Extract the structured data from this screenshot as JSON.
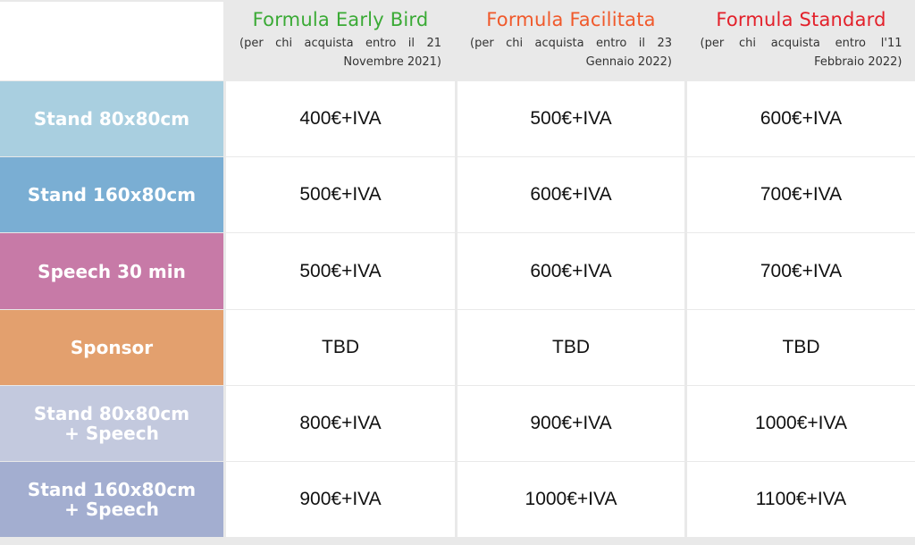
{
  "columns": [
    {
      "title": "Formula Early Bird",
      "subtitle": "(per chi acquista entro il 21 Novembre 2021)",
      "color": "#3aaa35"
    },
    {
      "title": "Formula Facilitata",
      "subtitle": "(per chi acquista entro il 23 Gennaio 2022)",
      "color": "#f0592b"
    },
    {
      "title": "Formula Standard",
      "subtitle": "(per chi acquista entro l'11 Febbraio 2022)",
      "color": "#e3202a"
    }
  ],
  "rows": [
    {
      "label": "Stand 80x80cm",
      "color": "#a9cfe0",
      "prices": [
        "400€+IVA",
        "500€+IVA",
        "600€+IVA"
      ]
    },
    {
      "label": "Stand 160x80cm",
      "color": "#7aaed3",
      "prices": [
        "500€+IVA",
        "600€+IVA",
        "700€+IVA"
      ]
    },
    {
      "label": "Speech 30 min",
      "color": "#c77aa7",
      "prices": [
        "500€+IVA",
        "600€+IVA",
        "700€+IVA"
      ]
    },
    {
      "label": "Sponsor",
      "color": "#e3a06e",
      "prices": [
        "TBD",
        "TBD",
        "TBD"
      ]
    },
    {
      "label": "Stand 80x80cm\n+ Speech",
      "color": "#c3c9de",
      "prices": [
        "800€+IVA",
        "900€+IVA",
        "1000€+IVA"
      ]
    },
    {
      "label": "Stand 160x80cm\n+ Speech",
      "color": "#a3aed0",
      "prices": [
        "900€+IVA",
        "1000€+IVA",
        "1100€+IVA"
      ]
    }
  ]
}
